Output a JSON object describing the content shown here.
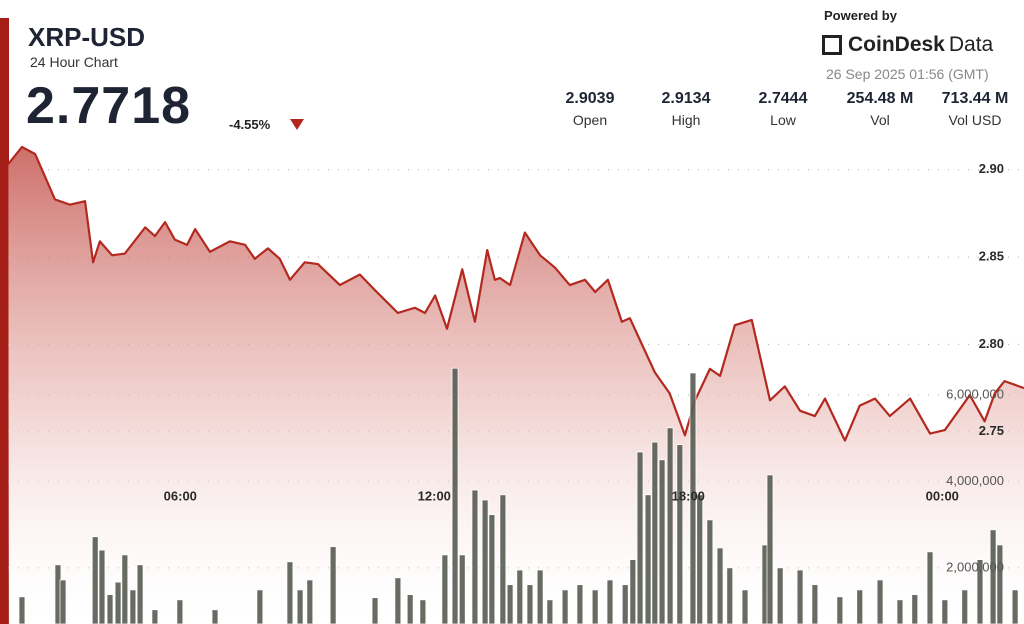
{
  "header": {
    "title": "XRP-USD",
    "subtitle": "24 Hour Chart",
    "price": "2.7718",
    "change": "-4.55%",
    "powered_by": "Powered by",
    "brand": "CoinDesk",
    "brand_suffix": "Data",
    "timestamp": "26 Sep 2025 01:56 (GMT)",
    "stats": [
      {
        "value": "2.9039",
        "label": "Open"
      },
      {
        "value": "2.9134",
        "label": "High"
      },
      {
        "value": "2.7444",
        "label": "Low"
      },
      {
        "value": "254.48 M",
        "label": "Vol"
      },
      {
        "value": "713.44 M",
        "label": "Vol USD"
      }
    ]
  },
  "chart_data": {
    "type": "line",
    "xlim": [
      1.93,
      25.93
    ],
    "xticks": [
      {
        "value": 6,
        "label": "06:00"
      },
      {
        "value": 12,
        "label": "12:00"
      },
      {
        "value": 18,
        "label": "18:00"
      },
      {
        "value": 24,
        "label": "00:00"
      }
    ],
    "ylim": [
      2.64,
      2.917
    ],
    "yticks": [
      2.75,
      {
        "value": 2.8,
        "label": "2.80"
      },
      2.85,
      {
        "value": 2.9,
        "label": "2.90"
      }
    ],
    "y2lim": [
      700000,
      11900000
    ],
    "y2ticks": [
      {
        "value": 2000000,
        "label": "2,000,000"
      },
      {
        "value": 4000000,
        "label": "4,000,000"
      },
      {
        "value": 6000000,
        "label": "6,000,000"
      }
    ],
    "grid": true,
    "series": [
      {
        "type": "area",
        "color": "#b3291f",
        "x": [
          1.93,
          2.26,
          2.57,
          3.04,
          3.39,
          3.75,
          3.94,
          4.1,
          4.39,
          4.69,
          5.17,
          5.4,
          5.64,
          5.87,
          6.16,
          6.35,
          6.7,
          7.17,
          7.53,
          7.76,
          8.07,
          8.35,
          8.59,
          8.94,
          9.25,
          9.77,
          10.24,
          10.6,
          11.14,
          11.54,
          11.78,
          12.02,
          12.3,
          12.66,
          12.96,
          13.25,
          13.43,
          13.55,
          13.79,
          14.14,
          14.5,
          14.85,
          15.2,
          15.56,
          15.8,
          16.1,
          16.43,
          16.62,
          17.21,
          17.56,
          17.92,
          18.16,
          18.51,
          18.75,
          19.1,
          19.5,
          19.93,
          20.28,
          20.64,
          20.99,
          21.23,
          21.7,
          22.05,
          22.41,
          22.76,
          23.24,
          23.71,
          24.06,
          24.65,
          25.0,
          25.24,
          25.47,
          25.93
        ],
        "values": [
          2.903,
          2.913,
          2.909,
          2.883,
          2.88,
          2.882,
          2.847,
          2.859,
          2.851,
          2.852,
          2.867,
          2.862,
          2.87,
          2.86,
          2.857,
          2.866,
          2.853,
          2.859,
          2.857,
          2.849,
          2.855,
          2.849,
          2.837,
          2.847,
          2.846,
          2.834,
          2.84,
          2.831,
          2.818,
          2.821,
          2.818,
          2.828,
          2.809,
          2.843,
          2.813,
          2.854,
          2.837,
          2.838,
          2.834,
          2.864,
          2.851,
          2.844,
          2.834,
          2.837,
          2.83,
          2.837,
          2.813,
          2.815,
          2.784,
          2.772,
          2.748,
          2.768,
          2.786,
          2.782,
          2.811,
          2.814,
          2.768,
          2.776,
          2.762,
          2.759,
          2.769,
          2.745,
          2.765,
          2.769,
          2.759,
          2.769,
          2.749,
          2.751,
          2.771,
          2.756,
          2.772,
          2.779,
          2.775
        ]
      },
      {
        "type": "bar",
        "axis": "y2",
        "color": "#5b5f56",
        "x": [
          2.26,
          3.11,
          3.23,
          3.99,
          4.15,
          4.34,
          4.53,
          4.69,
          4.88,
          5.05,
          5.4,
          5.99,
          6.82,
          7.88,
          8.59,
          8.83,
          9.06,
          9.61,
          10.6,
          11.14,
          11.43,
          11.73,
          12.25,
          12.49,
          12.66,
          12.96,
          13.2,
          13.36,
          13.62,
          13.79,
          14.02,
          14.26,
          14.5,
          14.73,
          15.09,
          15.44,
          15.8,
          16.15,
          16.51,
          16.69,
          16.86,
          17.05,
          17.21,
          17.38,
          17.57,
          17.8,
          18.11,
          18.27,
          18.51,
          18.75,
          18.98,
          19.34,
          19.81,
          19.93,
          20.17,
          20.64,
          20.99,
          21.58,
          22.05,
          22.53,
          23.0,
          23.35,
          23.71,
          24.06,
          24.53,
          24.89,
          25.2,
          25.36,
          25.72
        ],
        "values": [
          1330000,
          2070000,
          1720000,
          2720000,
          2410000,
          1380000,
          1670000,
          2300000,
          1490000,
          2070000,
          1030000,
          1260000,
          1030000,
          1490000,
          2140000,
          1490000,
          1720000,
          2490000,
          1310000,
          1770000,
          1380000,
          1260000,
          2300000,
          6620000,
          2300000,
          3800000,
          3570000,
          3230000,
          3690000,
          1610000,
          1950000,
          1610000,
          1950000,
          1260000,
          1490000,
          1610000,
          1490000,
          1720000,
          1610000,
          2190000,
          4680000,
          3690000,
          4910000,
          4500000,
          5240000,
          4850000,
          6510000,
          3690000,
          3110000,
          2460000,
          2000000,
          1490000,
          2530000,
          4150000,
          2000000,
          1950000,
          1610000,
          1330000,
          1490000,
          1720000,
          1260000,
          1380000,
          2370000,
          1260000,
          1490000,
          2190000,
          2880000,
          2530000,
          1490000
        ]
      }
    ]
  }
}
